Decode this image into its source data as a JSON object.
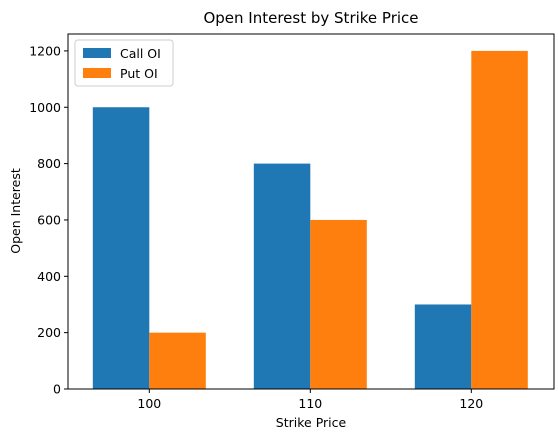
{
  "chart_data": {
    "type": "bar",
    "title": "Open Interest by Strike Price",
    "xlabel": "Strike Price",
    "ylabel": "Open Interest",
    "categories": [
      "100",
      "110",
      "120"
    ],
    "series": [
      {
        "name": "Call OI",
        "values": [
          1000,
          800,
          300
        ],
        "color": "#1f77b4"
      },
      {
        "name": "Put OI",
        "values": [
          200,
          600,
          1200
        ],
        "color": "#ff7f0e"
      }
    ],
    "ylim": [
      0,
      1260
    ],
    "yticks": [
      0,
      200,
      400,
      600,
      800,
      1000,
      1200
    ],
    "grid": false,
    "legend_position": "top-left"
  }
}
